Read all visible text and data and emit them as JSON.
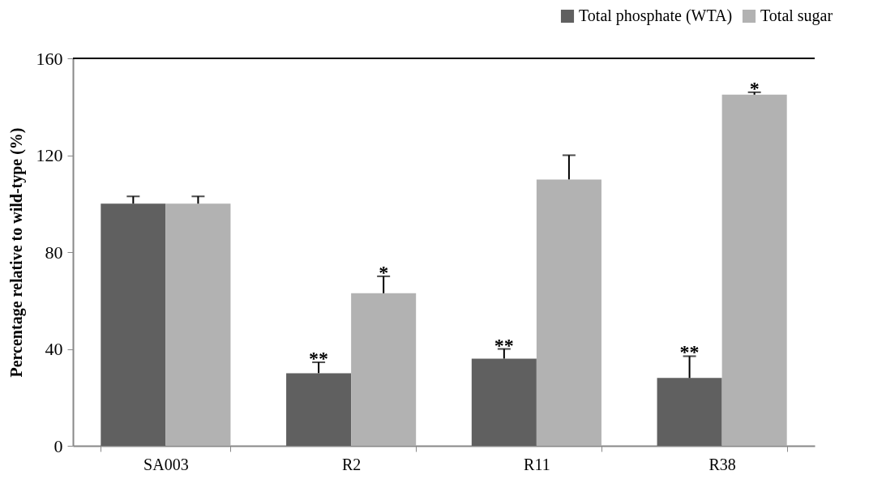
{
  "chart_data": {
    "type": "bar",
    "ylabel": "Percentage relative to wild-type (%)",
    "categories": [
      "SA003",
      "R2",
      "R11",
      "R38"
    ],
    "series": [
      {
        "name": "Total phosphate (WTA)",
        "color": "#606060",
        "values": [
          100,
          30,
          36,
          28
        ],
        "errors": [
          3,
          4.5,
          4,
          9
        ]
      },
      {
        "name": "Total sugar",
        "color": "#b2b2b2",
        "values": [
          100,
          63,
          110,
          145
        ],
        "errors": [
          3,
          7,
          10,
          1
        ]
      }
    ],
    "ylim": [
      0,
      160
    ],
    "yticks": [
      0,
      40,
      80,
      120,
      160
    ],
    "grid": false,
    "legend": "top right",
    "annotations": [
      {
        "text": "**",
        "x": "R2",
        "y": 30
      },
      {
        "text": "*",
        "x": "R2",
        "y": 63
      },
      {
        "text": "**",
        "x": "R11",
        "y": 36
      },
      {
        "text": "**",
        "x": "R38",
        "y": 28
      },
      {
        "text": "*",
        "x": "R38",
        "y": 145
      }
    ]
  }
}
